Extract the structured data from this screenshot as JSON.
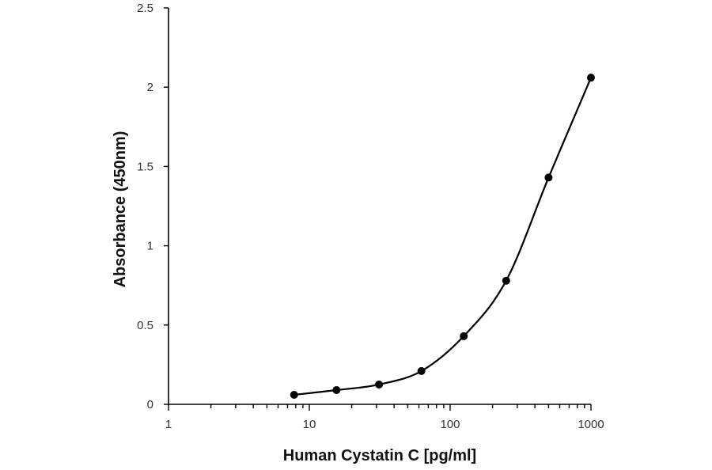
{
  "chart_data": {
    "type": "scatter",
    "title": "",
    "xlabel": "Human Cystatin C [pg/ml]",
    "ylabel": "Absorbance (450nm)",
    "x_scale": "log",
    "xlim": [
      1,
      1000
    ],
    "ylim": [
      0,
      2.5
    ],
    "x_tick_labels": [
      "1",
      "10",
      "100",
      "1000"
    ],
    "y_tick_labels": [
      "0",
      "0.5",
      "1",
      "1.5",
      "2",
      "2.5"
    ],
    "grid": false,
    "legend": "none",
    "series": [
      {
        "x": [
          7.8,
          15.6,
          31.25,
          62.5,
          125,
          250,
          500,
          1000
        ],
        "y": [
          0.06,
          0.09,
          0.125,
          0.21,
          0.43,
          0.78,
          1.43,
          2.06
        ],
        "marker": "circle",
        "line": "smooth",
        "color": "#000000"
      }
    ]
  }
}
